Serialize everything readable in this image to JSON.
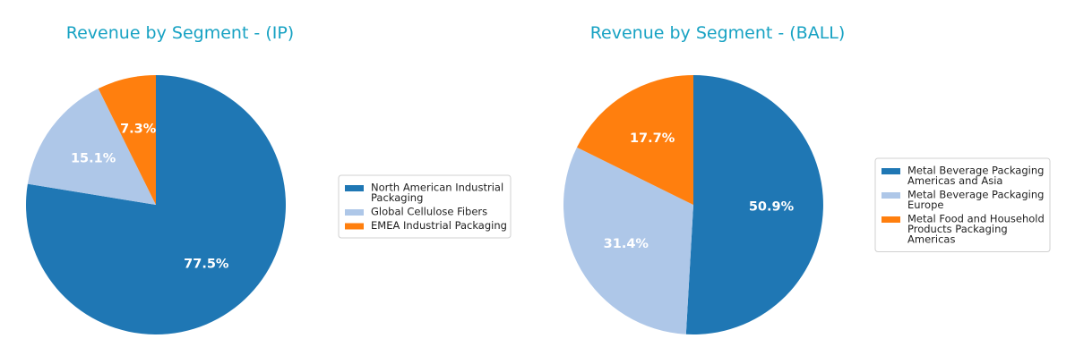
{
  "chart_data": [
    {
      "type": "pie",
      "title": "Revenue by Segment - (IP)",
      "start_angle_deg": 90,
      "direction": "clockwise",
      "slices": [
        {
          "label": "North American Industrial Packaging",
          "legend_lines": [
            "North American Industrial",
            "Packaging"
          ],
          "value": 77.5,
          "display": "77.5%",
          "color": "#1f77b4"
        },
        {
          "label": "Global Cellulose Fibers",
          "legend_lines": [
            "Global Cellulose Fibers"
          ],
          "value": 15.1,
          "display": "15.1%",
          "color": "#aec7e8"
        },
        {
          "label": "EMEA Industrial Packaging",
          "legend_lines": [
            "EMEA Industrial Packaging"
          ],
          "value": 7.3,
          "display": "7.3%",
          "color": "#ff7f0e"
        }
      ],
      "legend_placement": "right"
    },
    {
      "type": "pie",
      "title": "Revenue by Segment - (BALL)",
      "start_angle_deg": 90,
      "direction": "clockwise",
      "slices": [
        {
          "label": "Metal Beverage Packaging Americas and Asia",
          "legend_lines": [
            "Metal Beverage Packaging",
            "Americas and Asia"
          ],
          "value": 50.9,
          "display": "50.9%",
          "color": "#1f77b4"
        },
        {
          "label": "Metal Beverage Packaging Europe",
          "legend_lines": [
            "Metal Beverage Packaging",
            "Europe"
          ],
          "value": 31.4,
          "display": "31.4%",
          "color": "#aec7e8"
        },
        {
          "label": "Metal Food and Household Products Packaging Americas",
          "legend_lines": [
            "Metal Food and Household",
            "Products Packaging",
            "Americas"
          ],
          "value": 17.7,
          "display": "17.7%",
          "color": "#ff7f0e"
        }
      ],
      "legend_placement": "right"
    }
  ]
}
